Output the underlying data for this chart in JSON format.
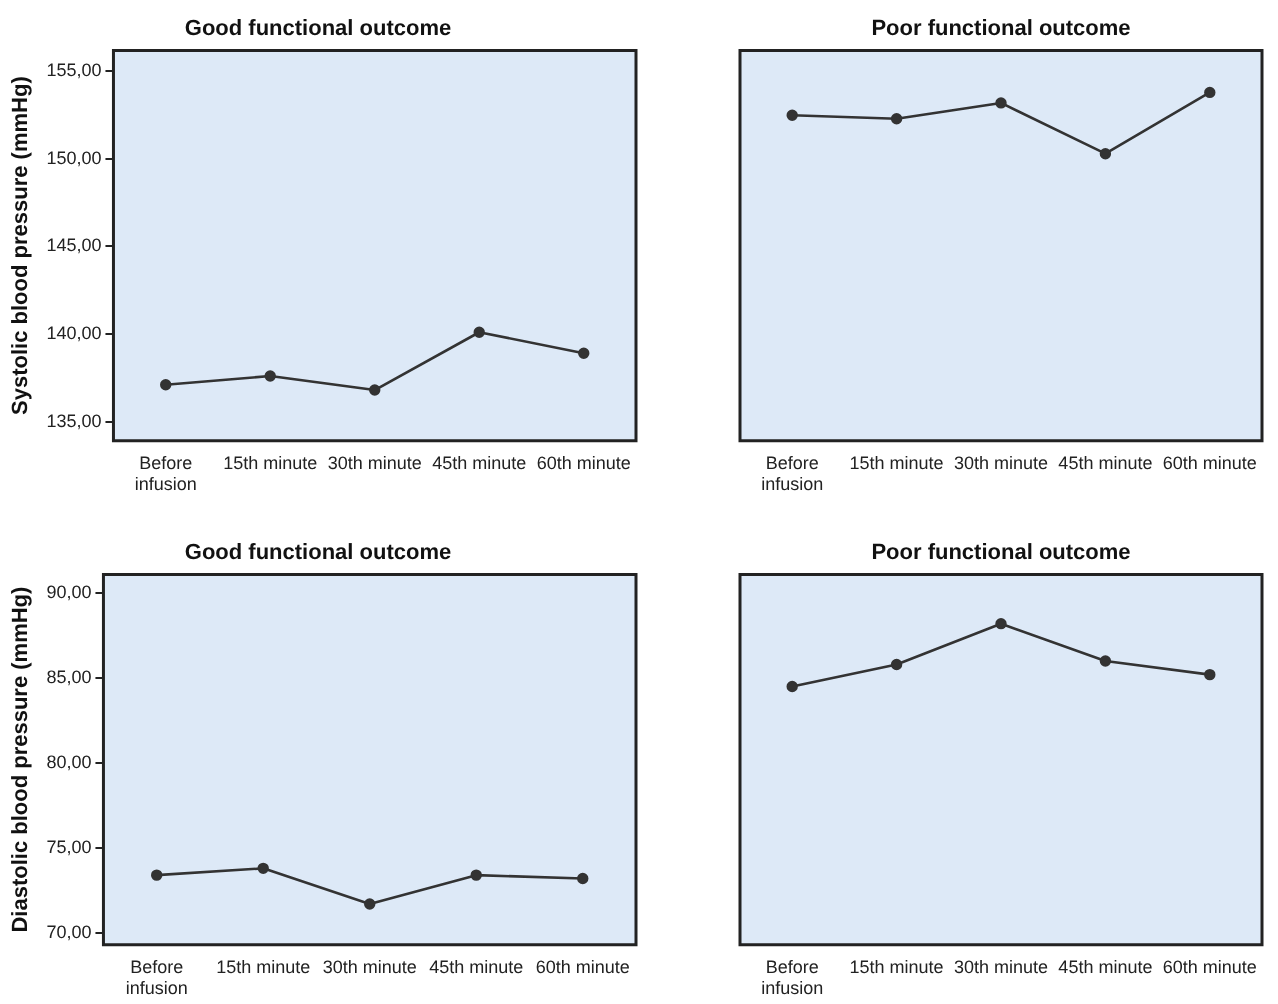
{
  "chart_data": [
    {
      "type": "line",
      "title": "Good functional outcome",
      "ylabel": "Systolic blood pressure (mmHg)",
      "categories": [
        "Before infusion",
        "15th minute",
        "30th minute",
        "45th minute",
        "60th minute"
      ],
      "series": [
        {
          "color": "#333333",
          "values": [
            137.1,
            137.6,
            136.8,
            140.1,
            138.9
          ]
        }
      ],
      "ylim": [
        133.9,
        156.2
      ],
      "yticks": [
        {
          "value": 135,
          "label": "135,00"
        },
        {
          "value": 140,
          "label": "140,00"
        },
        {
          "value": 145,
          "label": "145,00"
        },
        {
          "value": 150,
          "label": "150,00"
        },
        {
          "value": 155,
          "label": "155,00"
        }
      ],
      "marker": "circle",
      "legend": false,
      "grid": false
    },
    {
      "type": "line",
      "title": "Poor functional outcome",
      "categories": [
        "Before infusion",
        "15th minute",
        "30th minute",
        "45th minute",
        "60th minute"
      ],
      "series": [
        {
          "color": "#333333",
          "values": [
            152.5,
            152.3,
            153.2,
            150.3,
            153.8
          ]
        }
      ],
      "ylim": [
        133.9,
        156.2
      ],
      "tick_labels": "x",
      "marker": "circle",
      "legend": false,
      "grid": false
    },
    {
      "type": "line",
      "title": "Good functional outcome",
      "ylabel": "Diastolic blood pressure (mmHg)",
      "categories": [
        "Before infusion",
        "15th minute",
        "30th minute",
        "45th minute",
        "60th minute"
      ],
      "series": [
        {
          "color": "#333333",
          "values": [
            73.4,
            73.8,
            71.7,
            73.4,
            73.2
          ]
        }
      ],
      "ylim": [
        69.3,
        91.1
      ],
      "yticks": [
        {
          "value": 70,
          "label": "70,00"
        },
        {
          "value": 75,
          "label": "75,00"
        },
        {
          "value": 80,
          "label": "80,00"
        },
        {
          "value": 85,
          "label": "85,00"
        },
        {
          "value": 90,
          "label": "90,00"
        }
      ],
      "marker": "circle",
      "legend": false,
      "grid": false
    },
    {
      "type": "line",
      "title": "Poor functional outcome",
      "categories": [
        "Before infusion",
        "15th minute",
        "30th minute",
        "45th minute",
        "60th minute"
      ],
      "series": [
        {
          "color": "#333333",
          "values": [
            84.5,
            85.8,
            88.2,
            86.0,
            85.2
          ]
        }
      ],
      "ylim": [
        69.3,
        91.1
      ],
      "tick_labels": "x",
      "marker": "circle",
      "legend": false,
      "grid": false
    }
  ]
}
